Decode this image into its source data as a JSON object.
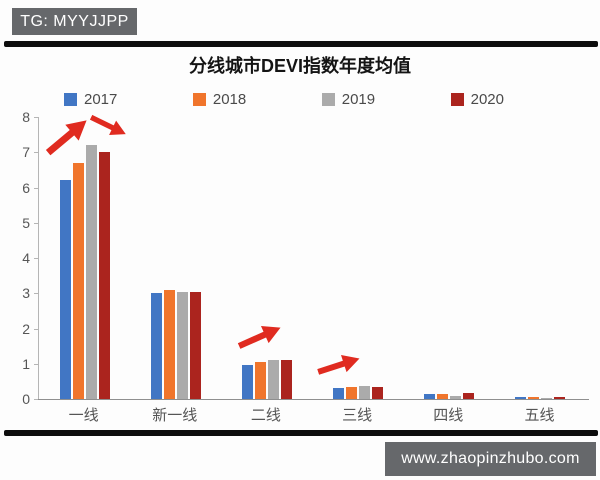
{
  "header": {
    "badge": "TG: MYYJJPP"
  },
  "watermark": {
    "url_text": "www.zhaopinzhubo.com"
  },
  "chart_data": {
    "type": "bar",
    "title": "分线城市DEVI指数年度均值",
    "categories": [
      "一线",
      "新一线",
      "二线",
      "三线",
      "四线",
      "五线"
    ],
    "series": [
      {
        "name": "2017",
        "color": "#4176c4",
        "values": [
          6.2,
          3.0,
          0.98,
          0.3,
          0.13,
          0.06
        ]
      },
      {
        "name": "2018",
        "color": "#f0752c",
        "values": [
          6.7,
          3.08,
          1.05,
          0.33,
          0.14,
          0.06
        ]
      },
      {
        "name": "2019",
        "color": "#ababab",
        "values": [
          7.2,
          3.04,
          1.12,
          0.36,
          0.1,
          0.04
        ]
      },
      {
        "name": "2020",
        "color": "#ab241e",
        "values": [
          7.0,
          3.04,
          1.1,
          0.34,
          0.17,
          0.07
        ]
      }
    ],
    "ylim": [
      0,
      8
    ],
    "yticks": [
      0,
      1,
      2,
      3,
      4,
      5,
      6,
      7,
      8
    ],
    "grid": false,
    "legend_position": "top",
    "annotations": [
      {
        "type": "arrow",
        "color": "#e02b20",
        "target": "一线 2017-2019",
        "direction": "up-right"
      },
      {
        "type": "arrow",
        "color": "#e02b20",
        "target": "一线 2019-2020",
        "direction": "down-right"
      },
      {
        "type": "arrow",
        "color": "#e02b20",
        "target": "二线",
        "direction": "up-right"
      },
      {
        "type": "arrow",
        "color": "#e02b20",
        "target": "三线",
        "direction": "up-right"
      }
    ]
  }
}
